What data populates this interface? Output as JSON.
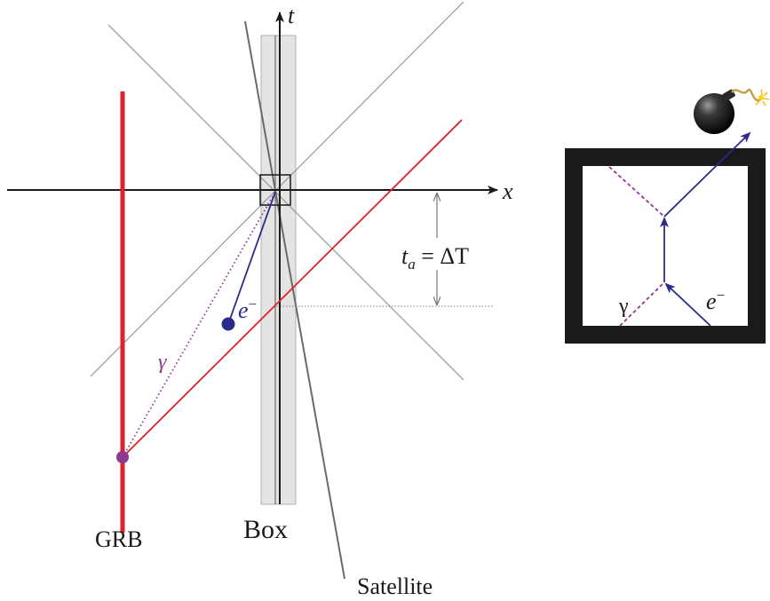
{
  "spacetime": {
    "axis_t": "t",
    "axis_x": "x",
    "grb_label": "GRB",
    "box_label": "Box",
    "satellite_label": "Satellite",
    "photon_label": "γ",
    "electron_label": "e",
    "electron_superscript": "−",
    "interval_t": "t",
    "interval_sub": "a",
    "interval_rhs": " = ΔT"
  },
  "inset": {
    "photon_label": "γ",
    "electron_label": "e",
    "electron_superscript": "−",
    "bomb_icon": "bomb-icon"
  },
  "colors": {
    "grb": "#e0212b",
    "light_ray": "#e0212b",
    "electron": "#2b2b8c",
    "photon": "#8e3a8e",
    "box_band": "#e4e4e4",
    "frame": "#1a1a1a"
  }
}
